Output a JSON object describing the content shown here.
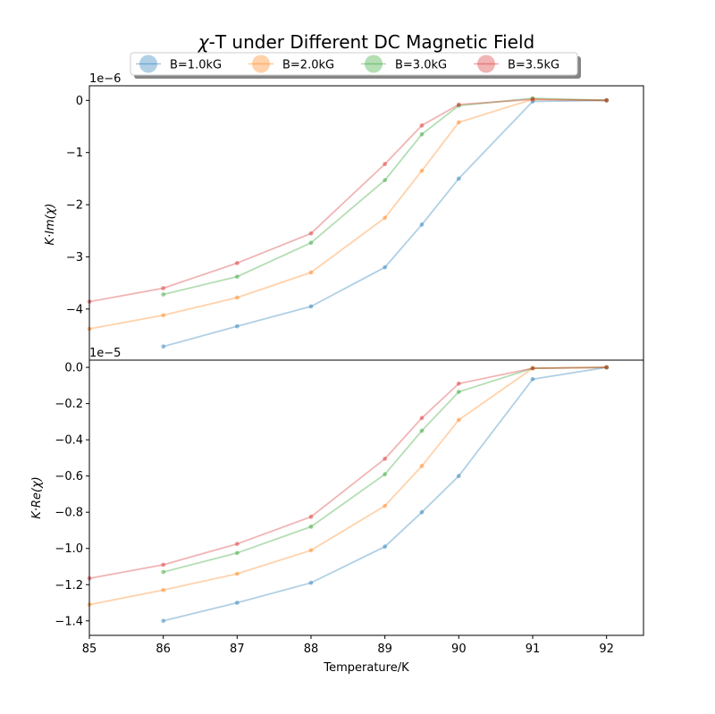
{
  "chart_data": [
    {
      "type": "line",
      "title_prefix": "χ",
      "title": "-T under Different DC Magnetic Field",
      "ylabel": "K·Im(χ)",
      "y_offset_text": "1e−6",
      "xlim": [
        85,
        92.5
      ],
      "ylim": [
        -4.98,
        0.28
      ],
      "y_ticks": [
        {
          "value": 0,
          "label": "0"
        },
        {
          "value": -1,
          "label": "−1"
        },
        {
          "value": -2,
          "label": "−2"
        },
        {
          "value": -3,
          "label": "−3"
        },
        {
          "value": -4,
          "label": "−4"
        }
      ],
      "legend": {
        "placement": "top-center, above plot",
        "ncol": 4
      },
      "series": [
        {
          "name": "B=1.0kG",
          "color": "#1f77b4",
          "x": [
            86,
            87,
            88,
            89,
            89.5,
            90,
            91,
            92
          ],
          "y": [
            -4.72,
            -4.33,
            -3.95,
            -3.2,
            -2.38,
            -1.5,
            -0.02,
            0.0
          ]
        },
        {
          "name": "B=2.0kG",
          "color": "#ff7f0e",
          "x": [
            85,
            86,
            87,
            88,
            89,
            89.5,
            90,
            91,
            92
          ],
          "y": [
            -4.38,
            -4.12,
            -3.78,
            -3.3,
            -2.25,
            -1.35,
            -0.42,
            0.02,
            0.0
          ]
        },
        {
          "name": "B=3.0kG",
          "color": "#2ca02c",
          "x": [
            86,
            87,
            88,
            89,
            89.5,
            90,
            91,
            92
          ],
          "y": [
            -3.72,
            -3.38,
            -2.73,
            -1.53,
            -0.65,
            -0.1,
            0.04,
            0.0
          ]
        },
        {
          "name": "B=3.5kG",
          "color": "#d62728",
          "x": [
            85,
            86,
            87,
            88,
            89,
            89.5,
            90,
            91,
            92
          ],
          "y": [
            -3.86,
            -3.6,
            -3.12,
            -2.55,
            -1.22,
            -0.48,
            -0.08,
            0.02,
            0.0
          ]
        }
      ]
    },
    {
      "type": "line",
      "xlabel": "Temperature/K",
      "ylabel": "K·Re(χ)",
      "y_offset_text": "1e−5",
      "xlim": [
        85,
        92.5
      ],
      "ylim": [
        -1.48,
        0.04
      ],
      "x_ticks": [
        {
          "value": 85,
          "label": "85"
        },
        {
          "value": 86,
          "label": "86"
        },
        {
          "value": 87,
          "label": "87"
        },
        {
          "value": 88,
          "label": "88"
        },
        {
          "value": 89,
          "label": "89"
        },
        {
          "value": 90,
          "label": "90"
        },
        {
          "value": 91,
          "label": "91"
        },
        {
          "value": 92,
          "label": "92"
        }
      ],
      "y_ticks": [
        {
          "value": 0,
          "label": "0.0"
        },
        {
          "value": -0.2,
          "label": "−0.2"
        },
        {
          "value": -0.4,
          "label": "−0.4"
        },
        {
          "value": -0.6,
          "label": "−0.6"
        },
        {
          "value": -0.8,
          "label": "−0.8"
        },
        {
          "value": -1.0,
          "label": "−1.0"
        },
        {
          "value": -1.2,
          "label": "−1.2"
        },
        {
          "value": -1.4,
          "label": "−1.4"
        }
      ],
      "series": [
        {
          "name": "B=1.0kG",
          "color": "#1f77b4",
          "x": [
            86,
            87,
            88,
            89,
            89.5,
            90,
            91,
            92
          ],
          "y": [
            -1.4,
            -1.3,
            -1.19,
            -0.99,
            -0.8,
            -0.6,
            -0.065,
            0.0
          ]
        },
        {
          "name": "B=2.0kG",
          "color": "#ff7f0e",
          "x": [
            85,
            86,
            87,
            88,
            89,
            89.5,
            90,
            91,
            92
          ],
          "y": [
            -1.31,
            -1.23,
            -1.14,
            -1.01,
            -0.765,
            -0.545,
            -0.29,
            -0.005,
            0.0
          ]
        },
        {
          "name": "B=3.0kG",
          "color": "#2ca02c",
          "x": [
            86,
            87,
            88,
            89,
            89.5,
            90,
            91,
            92
          ],
          "y": [
            -1.13,
            -1.025,
            -0.88,
            -0.59,
            -0.35,
            -0.135,
            -0.005,
            0.0
          ]
        },
        {
          "name": "B=3.5kG",
          "color": "#d62728",
          "x": [
            85,
            86,
            87,
            88,
            89,
            89.5,
            90,
            91,
            92
          ],
          "y": [
            -1.165,
            -1.09,
            -0.975,
            -0.825,
            -0.505,
            -0.28,
            -0.09,
            -0.005,
            0.0
          ]
        }
      ]
    }
  ]
}
